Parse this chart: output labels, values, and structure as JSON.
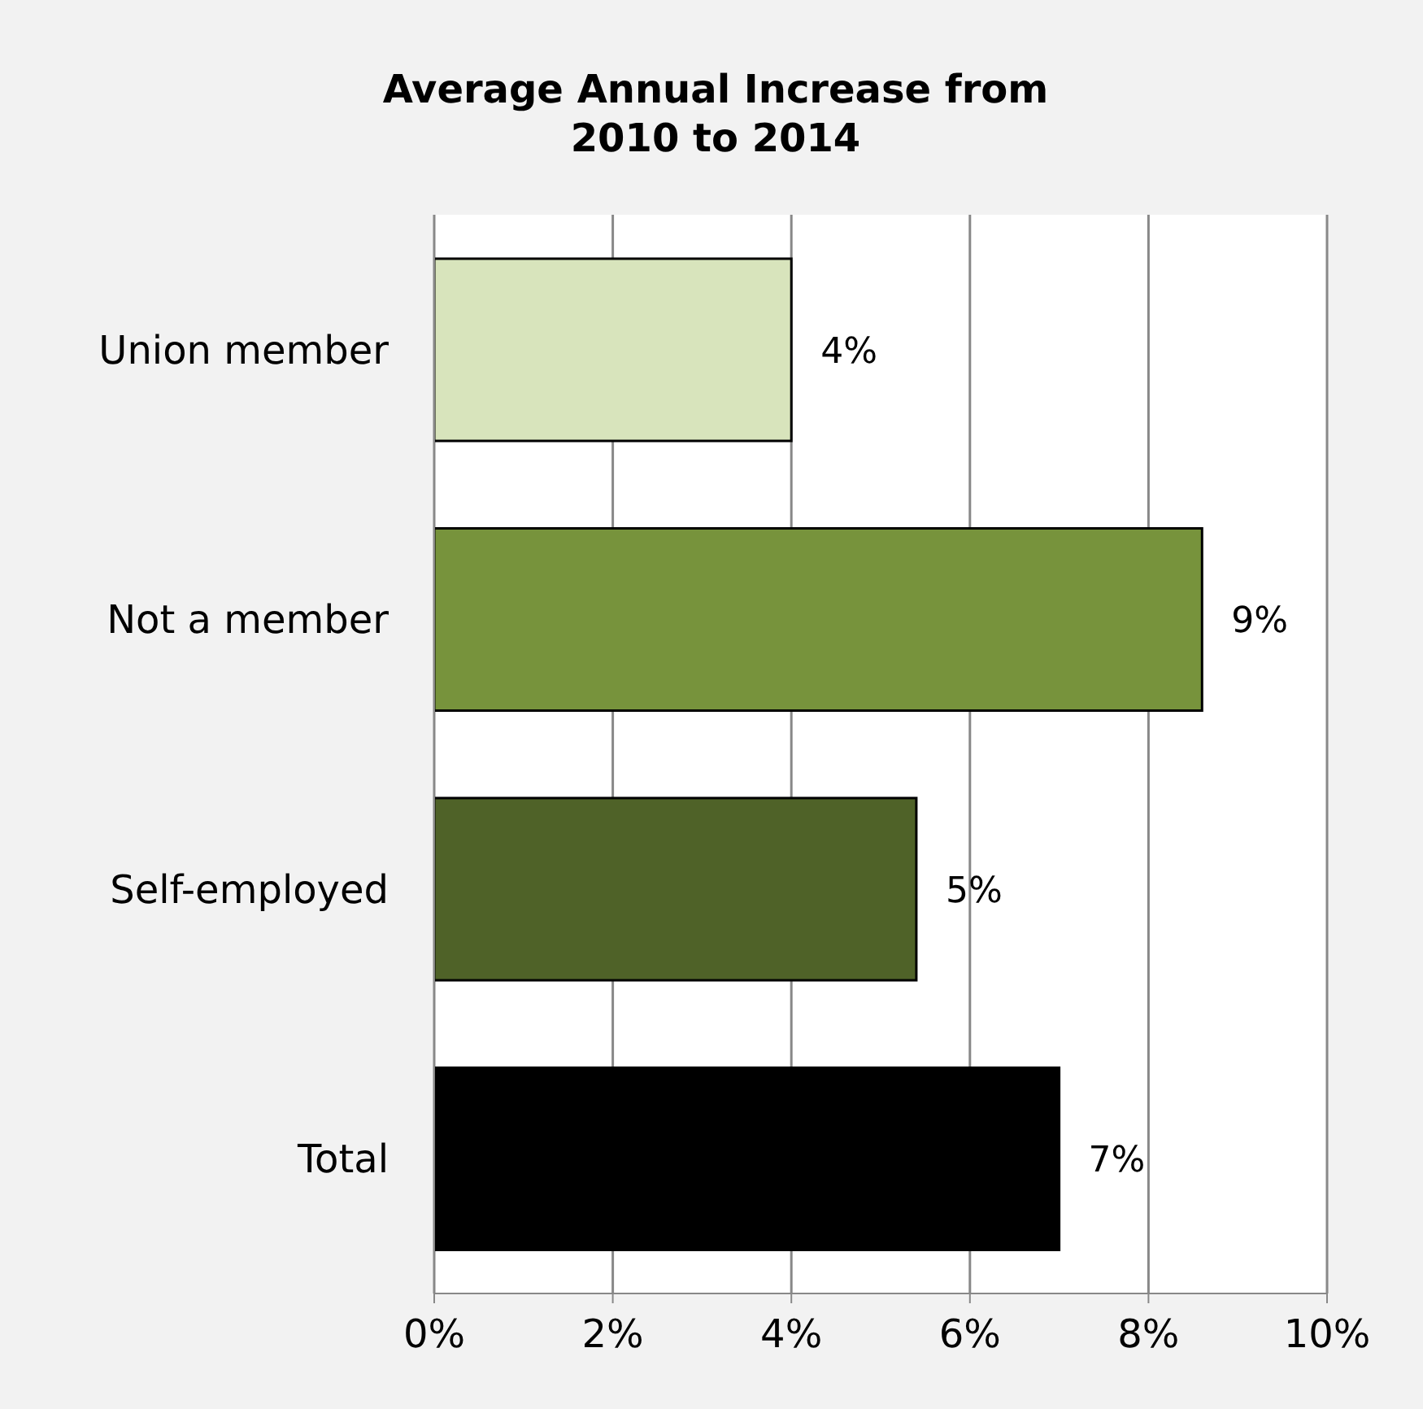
{
  "chart_data": {
    "type": "bar",
    "orientation": "horizontal",
    "title": "Average Annual Increase from 2010 to 2014",
    "categories": [
      "Union member",
      "Not a member",
      "Self-employed",
      "Total"
    ],
    "values": [
      4.0,
      8.6,
      5.4,
      7.0
    ],
    "colors": [
      "#d8e4bc",
      "#77933c",
      "#4f6228",
      "#000000"
    ],
    "value_labels": [
      "4%",
      "9%",
      "5%",
      "7%"
    ],
    "xlim": [
      0,
      10
    ],
    "xticks": [
      {
        "value": 0,
        "label": "0%"
      },
      {
        "value": 2,
        "label": "2%"
      },
      {
        "value": 4,
        "label": "4%"
      },
      {
        "value": 6,
        "label": "6%"
      },
      {
        "value": 8,
        "label": "8%"
      },
      {
        "value": 10,
        "label": "10%"
      }
    ],
    "grid": "x",
    "legend": false
  }
}
